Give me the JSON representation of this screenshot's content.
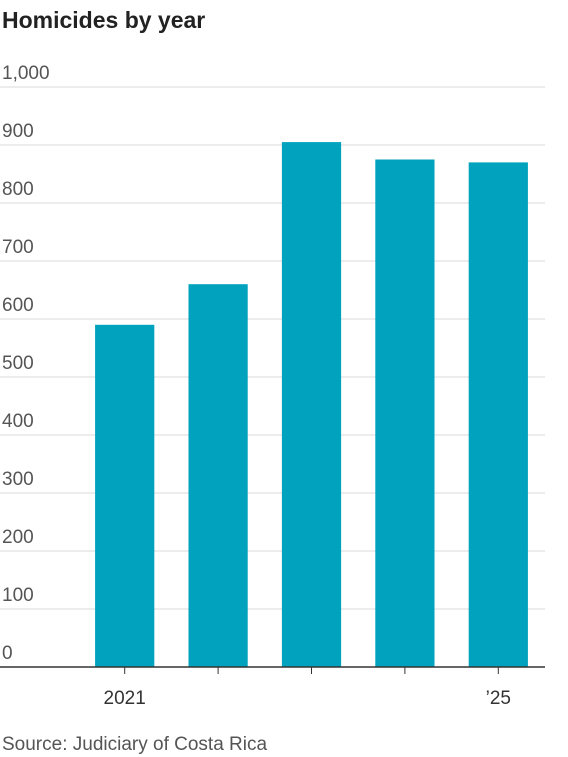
{
  "chart_data": {
    "type": "bar",
    "title": "Homicides by year",
    "categories": [
      "2021",
      null,
      null,
      null,
      "’25"
    ],
    "values": [
      590,
      660,
      905,
      875,
      870
    ],
    "color": "#00a2bd",
    "ylim": [
      0,
      1000
    ],
    "yticks": [
      0,
      100,
      200,
      300,
      400,
      500,
      600,
      700,
      800,
      900,
      {
        "value": 1000,
        "label": "1,000"
      }
    ],
    "grid": true,
    "source": "Source: Judiciary of Costa Rica"
  }
}
